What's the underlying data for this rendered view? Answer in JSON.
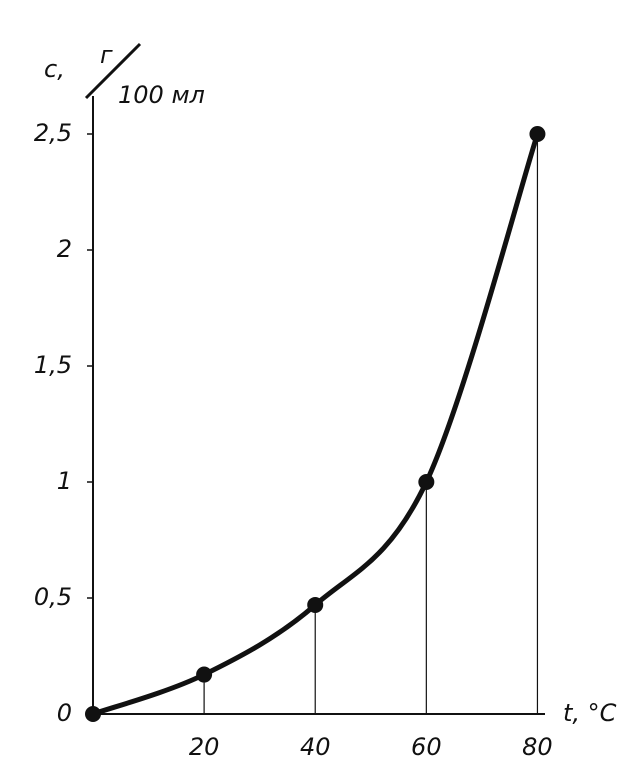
{
  "chart_data": {
    "type": "line",
    "y_label": "c,",
    "y_unit_numerator": "г",
    "y_unit_denominator": "100 мл",
    "x_label": "t, °C",
    "x": [
      0,
      20,
      40,
      60,
      80
    ],
    "values": [
      0,
      0.17,
      0.47,
      1.0,
      2.5
    ],
    "color": "#111111",
    "xlim": [
      0,
      81
    ],
    "ylim": [
      0,
      2.65
    ],
    "xticks": [
      20,
      40,
      60,
      80
    ],
    "yticks": [
      0,
      {
        "value": 0.5,
        "label": "0,5"
      },
      1,
      {
        "value": 1.5,
        "label": "1,5"
      },
      2,
      {
        "value": 2.5,
        "label": "2,5"
      }
    ],
    "drop_lines": true
  }
}
